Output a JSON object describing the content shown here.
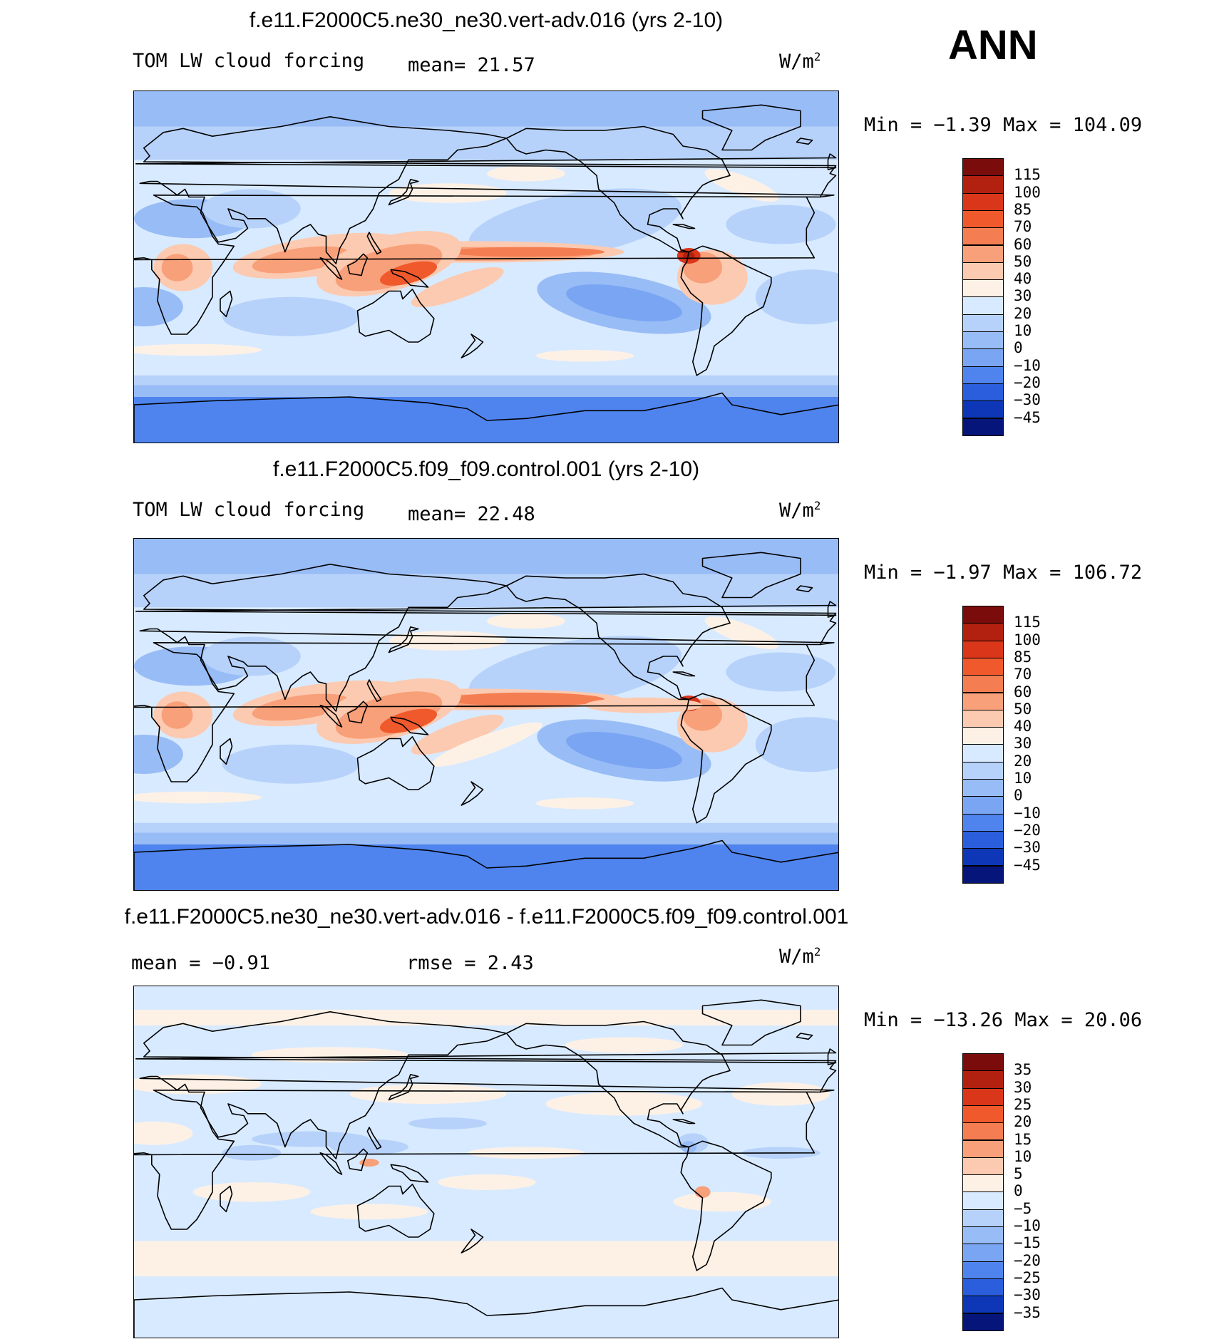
{
  "header": {
    "season": "ANN"
  },
  "panels": [
    {
      "title": "f.e11.F2000C5.ne30_ne30.vert-adv.016 (yrs 2-10)",
      "left_label": "TOM LW cloud forcing",
      "center_label": "mean=  21.57",
      "units_base": "W/m",
      "units_exp": "2",
      "minmax": "Min =  −1.39 Max = 104.09",
      "colorbar": {
        "levels": [
          "115",
          "100",
          "85",
          "70",
          "60",
          "50",
          "40",
          "30",
          "20",
          "10",
          "0",
          "−10",
          "−20",
          "−30",
          "−45"
        ],
        "colors": [
          "#7a0c0c",
          "#b2200f",
          "#d9361a",
          "#f0592c",
          "#f47e52",
          "#f8a07a",
          "#fccab0",
          "#fdf1e6",
          "#d8eaff",
          "#b7d2fa",
          "#98bcf6",
          "#7aa5f3",
          "#4f84ee",
          "#2a5edc",
          "#0d37b6",
          "#06157a"
        ]
      }
    },
    {
      "title": "f.e11.F2000C5.f09_f09.control.001 (yrs 2-10)",
      "left_label": "TOM LW cloud forcing",
      "center_label": "mean=  22.48",
      "units_base": "W/m",
      "units_exp": "2",
      "minmax": "Min =  −1.97 Max = 106.72",
      "colorbar": {
        "levels": [
          "115",
          "100",
          "85",
          "70",
          "60",
          "50",
          "40",
          "30",
          "20",
          "10",
          "0",
          "−10",
          "−20",
          "−30",
          "−45"
        ],
        "colors": [
          "#7a0c0c",
          "#b2200f",
          "#d9361a",
          "#f0592c",
          "#f47e52",
          "#f8a07a",
          "#fccab0",
          "#fdf1e6",
          "#d8eaff",
          "#b7d2fa",
          "#98bcf6",
          "#7aa5f3",
          "#4f84ee",
          "#2a5edc",
          "#0d37b6",
          "#06157a"
        ]
      }
    },
    {
      "title": "f.e11.F2000C5.ne30_ne30.vert-adv.016 - f.e11.F2000C5.f09_f09.control.001",
      "left_label": "mean =  −0.91",
      "center_label": "rmse =    2.43",
      "units_base": "W/m",
      "units_exp": "2",
      "minmax": "Min = −13.26 Max =  20.06",
      "colorbar": {
        "levels": [
          "35",
          "30",
          "25",
          "20",
          "15",
          "10",
          "5",
          "0",
          "−5",
          "−10",
          "−15",
          "−20",
          "−25",
          "−30",
          "−35"
        ],
        "colors": [
          "#7a0c0c",
          "#b2200f",
          "#d9361a",
          "#f0592c",
          "#f47e52",
          "#f8a07a",
          "#fccab0",
          "#fdf1e6",
          "#d8eaff",
          "#b7d2fa",
          "#98bcf6",
          "#7aa5f3",
          "#4f84ee",
          "#2a5edc",
          "#0d37b6",
          "#06157a"
        ]
      }
    }
  ],
  "chart_data": [
    {
      "type": "heatmap",
      "title": "f.e11.F2000C5.ne30_ne30.vert-adv.016 (yrs 2-10)",
      "subtitle": "TOM LW cloud forcing",
      "units": "W/m2",
      "mean": 21.57,
      "min": -1.39,
      "max": 104.09,
      "contour_levels": [
        -45,
        -30,
        -20,
        -10,
        0,
        10,
        20,
        30,
        40,
        50,
        60,
        70,
        85,
        100,
        115
      ],
      "projection": "cylindrical equidistant, Pacific-centered (lon 0-360)"
    },
    {
      "type": "heatmap",
      "title": "f.e11.F2000C5.f09_f09.control.001 (yrs 2-10)",
      "subtitle": "TOM LW cloud forcing",
      "units": "W/m2",
      "mean": 22.48,
      "min": -1.97,
      "max": 106.72,
      "contour_levels": [
        -45,
        -30,
        -20,
        -10,
        0,
        10,
        20,
        30,
        40,
        50,
        60,
        70,
        85,
        100,
        115
      ],
      "projection": "cylindrical equidistant, Pacific-centered (lon 0-360)"
    },
    {
      "type": "heatmap",
      "title": "f.e11.F2000C5.ne30_ne30.vert-adv.016 - f.e11.F2000C5.f09_f09.control.001",
      "units": "W/m2",
      "mean": -0.91,
      "rmse": 2.43,
      "min": -13.26,
      "max": 20.06,
      "contour_levels": [
        -35,
        -30,
        -25,
        -20,
        -15,
        -10,
        -5,
        0,
        5,
        10,
        15,
        20,
        25,
        30,
        35
      ],
      "projection": "cylindrical equidistant, Pacific-centered (lon 0-360)"
    }
  ]
}
